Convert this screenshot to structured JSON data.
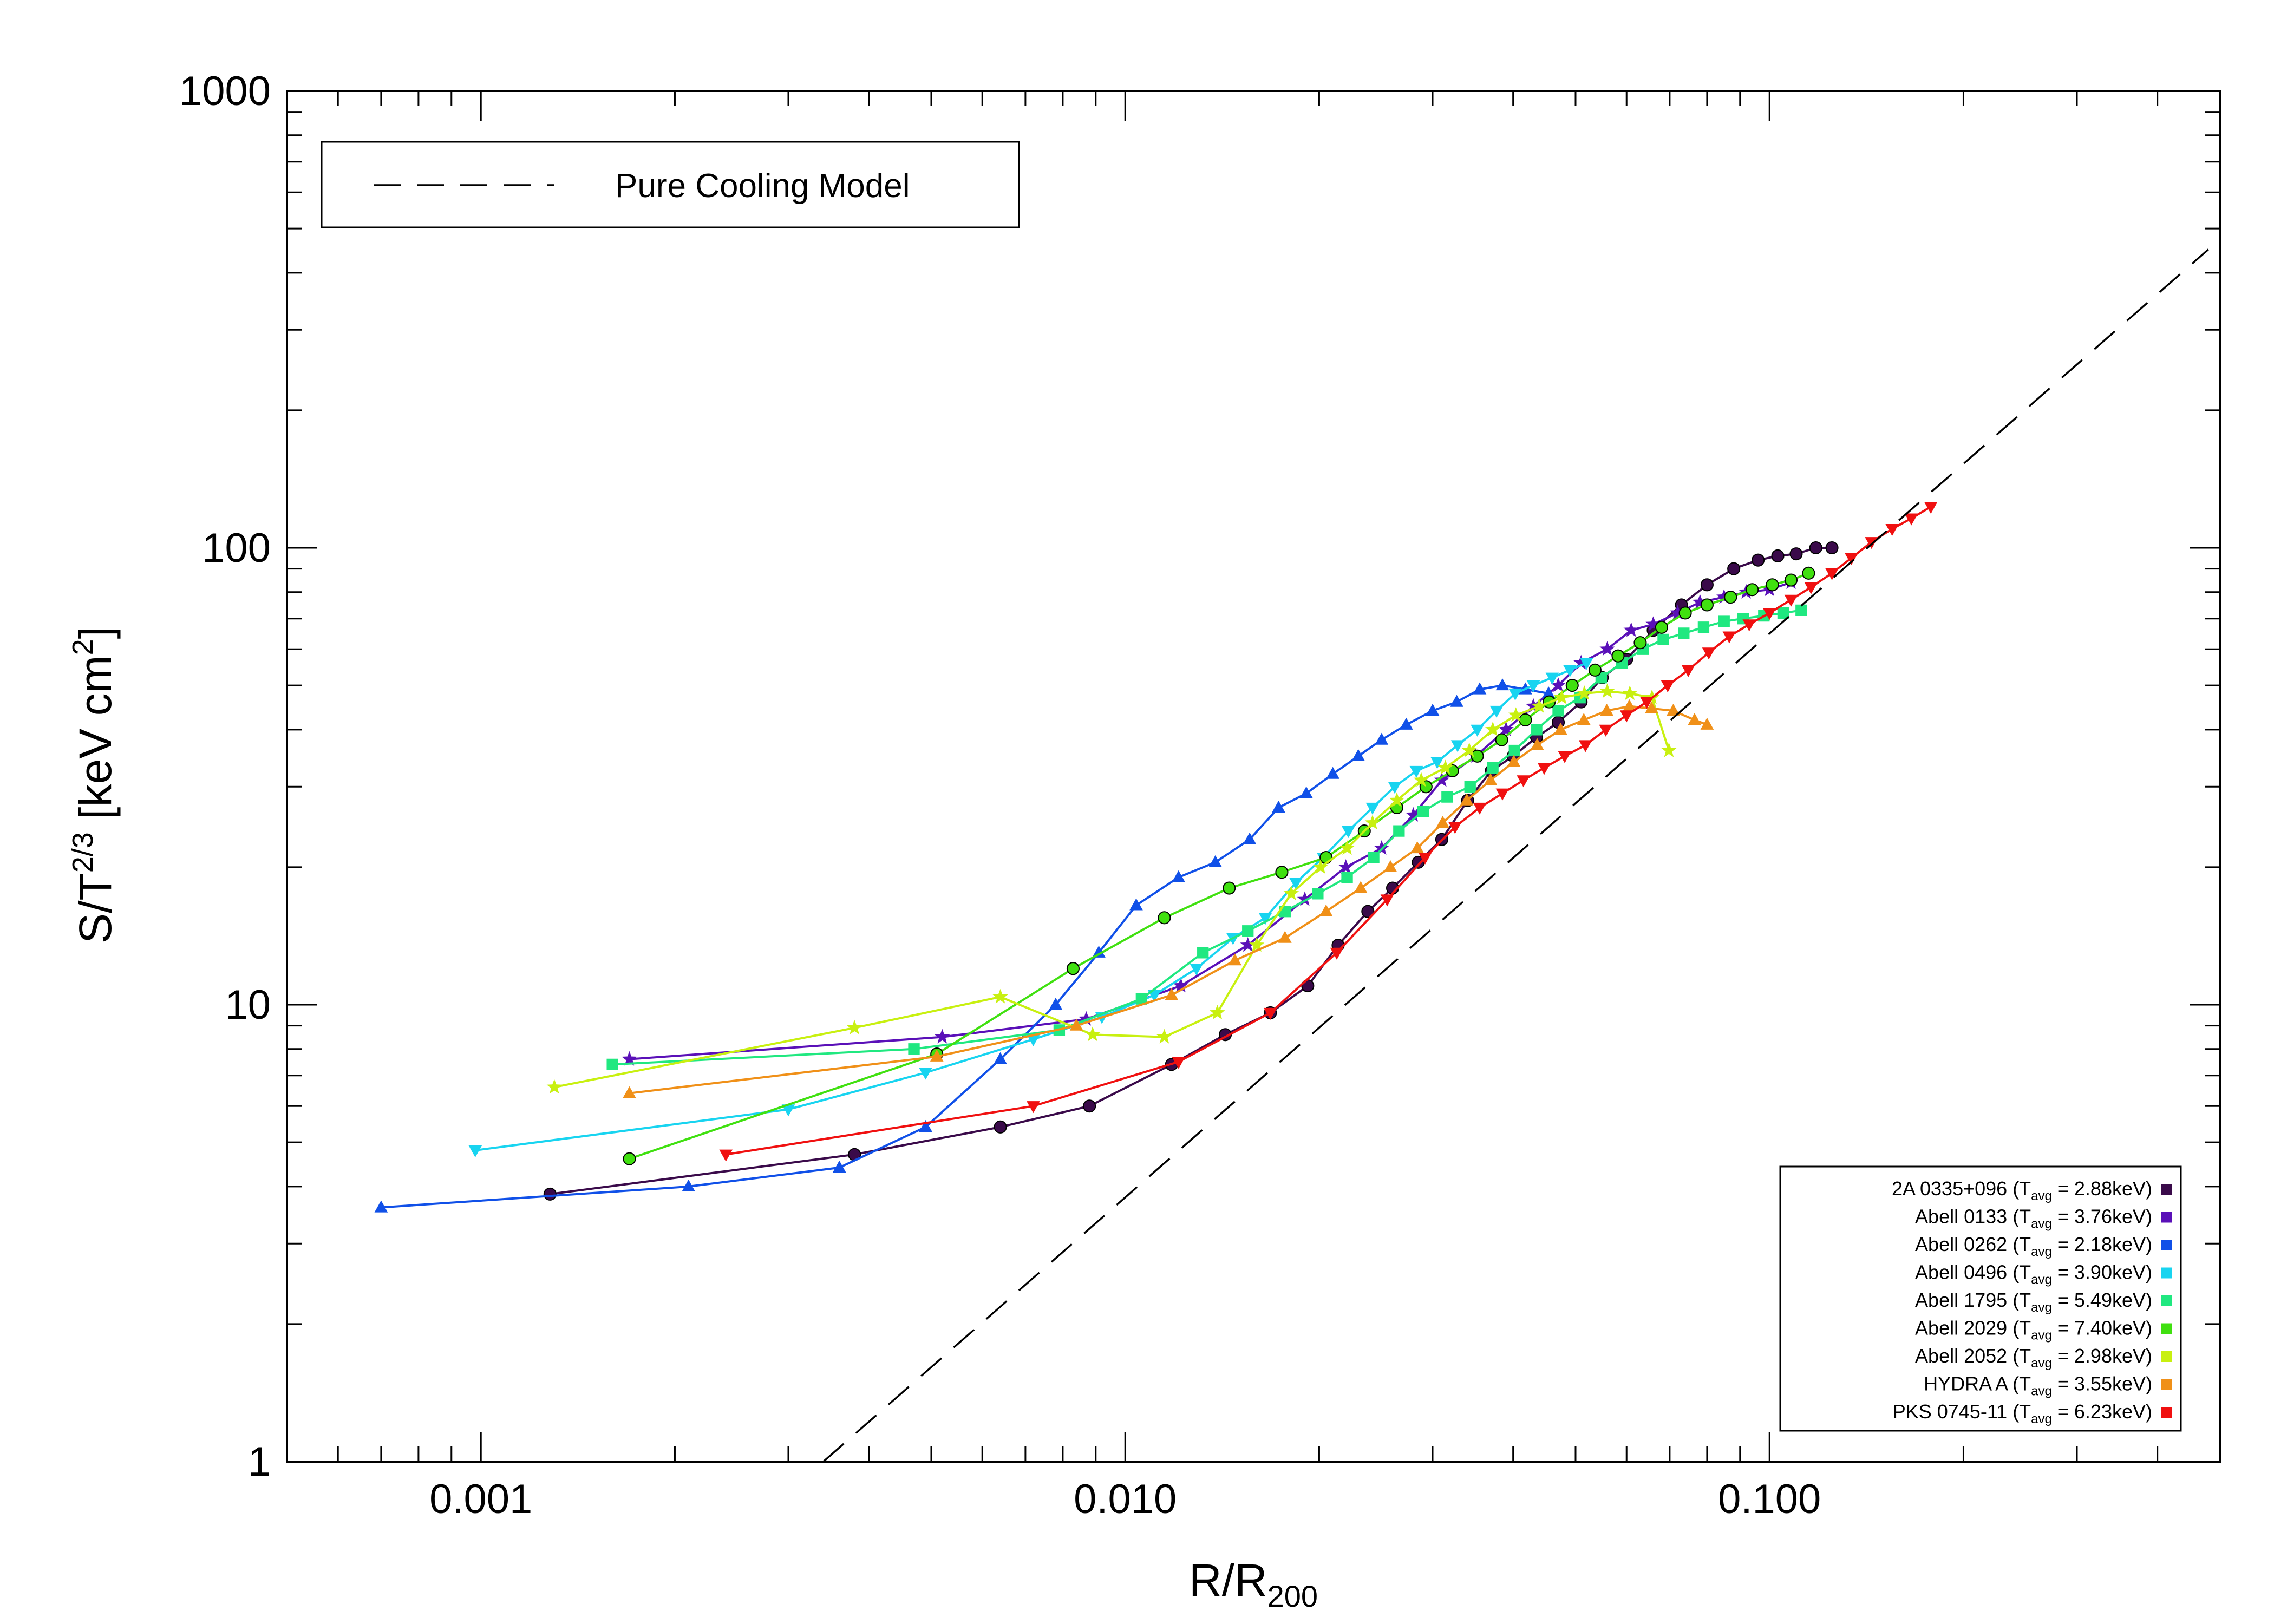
{
  "chart_data": {
    "type": "scatter",
    "x_scale": "log",
    "y_scale": "log",
    "xlim": [
      0.0005,
      0.5
    ],
    "ylim": [
      1,
      1000
    ],
    "x_ticks": [
      {
        "value": 0.001,
        "label": "0.001"
      },
      {
        "value": 0.01,
        "label": "0.010"
      },
      {
        "value": 0.1,
        "label": "0.100"
      }
    ],
    "y_ticks": [
      {
        "value": 1,
        "label": "1"
      },
      {
        "value": 10,
        "label": "10"
      },
      {
        "value": 100,
        "label": "100"
      },
      {
        "value": 1000,
        "label": "1000"
      }
    ],
    "xlabel_main": "R/R",
    "xlabel_sub": "200",
    "ylabel_main": "S/T",
    "ylabel_sup": "2/3",
    "ylabel_unit": " [keV cm",
    "ylabel_unit_sup": "2",
    "ylabel_close": "]",
    "grid": false,
    "model": {
      "label": "Pure Cooling Model",
      "x": [
        0.0034,
        0.48
      ],
      "y": [
        1,
        450
      ],
      "legend_location": "top-left"
    },
    "series_legend_location": "bottom-right",
    "series": [
      {
        "name": "2A 0335+096",
        "tavg": "2.88keV",
        "color": "#3a0a4a",
        "marker": "circle",
        "x": [
          0.00128,
          0.0038,
          0.0064,
          0.0088,
          0.0118,
          0.0143,
          0.0168,
          0.0192,
          0.0214,
          0.0238,
          0.026,
          0.0285,
          0.031,
          0.034,
          0.037,
          0.04,
          0.0435,
          0.047,
          0.051,
          0.055,
          0.06,
          0.066,
          0.073,
          0.08,
          0.088,
          0.096,
          0.103,
          0.11,
          0.118,
          0.125
        ],
        "y": [
          3.85,
          4.7,
          5.4,
          6.0,
          7.4,
          8.6,
          9.6,
          11.0,
          13.5,
          16.0,
          18.0,
          20.5,
          23.0,
          28.0,
          32.5,
          35.0,
          38.5,
          41.5,
          46.0,
          52.0,
          57.0,
          66.0,
          75.0,
          83.0,
          90.0,
          94.0,
          96.0,
          97.0,
          100.0,
          100.0
        ]
      },
      {
        "name": "Abell 0133",
        "tavg": "3.76keV",
        "color": "#5a10b8",
        "marker": "star",
        "x": [
          0.0017,
          0.0052,
          0.0087,
          0.0122,
          0.0155,
          0.019,
          0.022,
          0.025,
          0.028,
          0.031,
          0.035,
          0.039,
          0.043,
          0.047,
          0.051,
          0.056,
          0.061,
          0.066,
          0.072,
          0.078,
          0.085,
          0.092,
          0.1,
          0.108
        ],
        "y": [
          7.6,
          8.5,
          9.3,
          11.0,
          13.5,
          17.0,
          20.0,
          22.0,
          26.0,
          31.0,
          35.0,
          40.0,
          45.0,
          50.0,
          56.0,
          60.0,
          66.0,
          68.0,
          72.0,
          76.0,
          78.0,
          80.0,
          81.0,
          84.0
        ]
      },
      {
        "name": "Abell 0262",
        "tavg": "2.18keV",
        "color": "#1050e8",
        "marker": "triangle-up",
        "x": [
          0.0007,
          0.0021,
          0.0036,
          0.0049,
          0.0064,
          0.0078,
          0.0091,
          0.0104,
          0.0121,
          0.0138,
          0.0156,
          0.0173,
          0.0191,
          0.021,
          0.023,
          0.025,
          0.0273,
          0.03,
          0.0327,
          0.0355,
          0.0385,
          0.0418,
          0.0454
        ],
        "y": [
          3.6,
          4.0,
          4.4,
          5.4,
          7.6,
          10.0,
          13.0,
          16.5,
          19.0,
          20.5,
          23.0,
          27.0,
          29.0,
          32.0,
          35.0,
          38.0,
          41.0,
          44.0,
          46.0,
          49.0,
          50.0,
          49.0,
          48.0
        ]
      },
      {
        "name": "Abell 0496",
        "tavg": "3.90keV",
        "color": "#18d4f0",
        "marker": "triangle-down",
        "x": [
          0.00098,
          0.003,
          0.0049,
          0.0072,
          0.0092,
          0.0111,
          0.0129,
          0.0147,
          0.0165,
          0.0184,
          0.0203,
          0.0222,
          0.0242,
          0.0262,
          0.0283,
          0.0305,
          0.0328,
          0.0352,
          0.0377,
          0.0403,
          0.043,
          0.046,
          0.049,
          0.052
        ],
        "y": [
          4.8,
          5.9,
          7.1,
          8.4,
          9.4,
          10.5,
          12.0,
          14.0,
          15.5,
          18.5,
          21.0,
          24.0,
          27.0,
          30.0,
          32.5,
          34.0,
          37.0,
          40.0,
          44.0,
          48.0,
          50.0,
          52.0,
          54.0,
          56.0
        ]
      },
      {
        "name": "Abell 1795",
        "tavg": "5.49keV",
        "color": "#20e880",
        "marker": "square",
        "x": [
          0.0016,
          0.0047,
          0.0079,
          0.0106,
          0.0132,
          0.0155,
          0.0177,
          0.0199,
          0.0221,
          0.0243,
          0.0266,
          0.029,
          0.0316,
          0.0343,
          0.0372,
          0.0402,
          0.0435,
          0.047,
          0.0508,
          0.0548,
          0.059,
          0.0636,
          0.0684,
          0.0736,
          0.079,
          0.085,
          0.091,
          0.098,
          0.105,
          0.112
        ],
        "y": [
          7.4,
          8.0,
          8.8,
          10.3,
          13.0,
          14.5,
          16.0,
          17.5,
          19.0,
          21.0,
          24.0,
          26.5,
          28.5,
          30.0,
          33.0,
          36.0,
          40.0,
          44.0,
          47.0,
          52.0,
          56.0,
          60.0,
          63.0,
          65.0,
          67.0,
          69.0,
          70.0,
          71.0,
          72.0,
          73.0
        ]
      },
      {
        "name": "Abell 2029",
        "tavg": "7.40keV",
        "color": "#40e010",
        "marker": "circle",
        "x": [
          0.0017,
          0.0051,
          0.0083,
          0.0115,
          0.0145,
          0.0175,
          0.0205,
          0.0235,
          0.0264,
          0.0293,
          0.0322,
          0.0352,
          0.0384,
          0.0418,
          0.0455,
          0.0494,
          0.0536,
          0.0582,
          0.063,
          0.068,
          0.074,
          0.08,
          0.087,
          0.094,
          0.101,
          0.108,
          0.115
        ],
        "y": [
          4.6,
          7.8,
          12.0,
          15.5,
          18.0,
          19.5,
          21.0,
          24.0,
          27.0,
          30.0,
          32.5,
          35.0,
          38.0,
          42.0,
          46.0,
          50.0,
          54.0,
          58.0,
          62.0,
          67.0,
          72.0,
          75.0,
          78.0,
          81.0,
          83.0,
          85.0,
          88.0
        ]
      },
      {
        "name": "Abell 2052",
        "tavg": "2.98keV",
        "color": "#c8f010",
        "marker": "star",
        "x": [
          0.0013,
          0.0038,
          0.0064,
          0.0089,
          0.0115,
          0.0139,
          0.016,
          0.0181,
          0.0201,
          0.0221,
          0.0242,
          0.0264,
          0.0288,
          0.0314,
          0.0342,
          0.0372,
          0.0404,
          0.0439,
          0.0476,
          0.0516,
          0.056,
          0.0607,
          0.0657,
          0.0698
        ],
        "y": [
          6.6,
          8.9,
          10.4,
          8.6,
          8.5,
          9.6,
          13.5,
          17.5,
          20.0,
          22.0,
          25.0,
          28.0,
          31.0,
          33.0,
          36.0,
          40.0,
          43.0,
          45.0,
          47.0,
          48.0,
          48.5,
          48.0,
          47.0,
          36.0
        ]
      },
      {
        "name": "HYDRA A",
        "tavg": "3.55keV",
        "color": "#f09018",
        "marker": "triangle-up",
        "x": [
          0.0017,
          0.0051,
          0.0084,
          0.0118,
          0.0148,
          0.0177,
          0.0205,
          0.0232,
          0.0258,
          0.0284,
          0.0311,
          0.0339,
          0.0369,
          0.0401,
          0.0436,
          0.0474,
          0.0515,
          0.0559,
          0.0606,
          0.0656,
          0.0709,
          0.0765,
          0.08
        ],
        "y": [
          6.4,
          7.7,
          9.0,
          10.5,
          12.5,
          14.0,
          16.0,
          18.0,
          20.0,
          22.0,
          25.0,
          28.0,
          31.0,
          34.0,
          37.0,
          40.0,
          42.0,
          44.0,
          45.0,
          44.5,
          44.0,
          42.0,
          41.0
        ]
      },
      {
        "name": "PKS 0745-11",
        "tavg": "6.23keV",
        "color": "#f01010",
        "marker": "triangle-down",
        "x": [
          0.0024,
          0.0072,
          0.0121,
          0.0168,
          0.0213,
          0.0255,
          0.0292,
          0.0325,
          0.0355,
          0.0385,
          0.0415,
          0.0447,
          0.0481,
          0.0518,
          0.0557,
          0.06,
          0.0645,
          0.0695,
          0.0748,
          0.0805,
          0.0866,
          0.093,
          0.1,
          0.108,
          0.116,
          0.125,
          0.134,
          0.144,
          0.155,
          0.166,
          0.178
        ],
        "y": [
          4.7,
          6.0,
          7.5,
          9.6,
          13.0,
          17.0,
          21.0,
          24.5,
          27.0,
          29.0,
          31.0,
          33.0,
          35.0,
          37.0,
          40.0,
          43.0,
          46.0,
          50.0,
          54.0,
          59.0,
          64.0,
          68.0,
          72.0,
          77.0,
          82.0,
          88.0,
          95.0,
          103.0,
          110.0,
          116.0,
          123.0
        ]
      }
    ]
  }
}
